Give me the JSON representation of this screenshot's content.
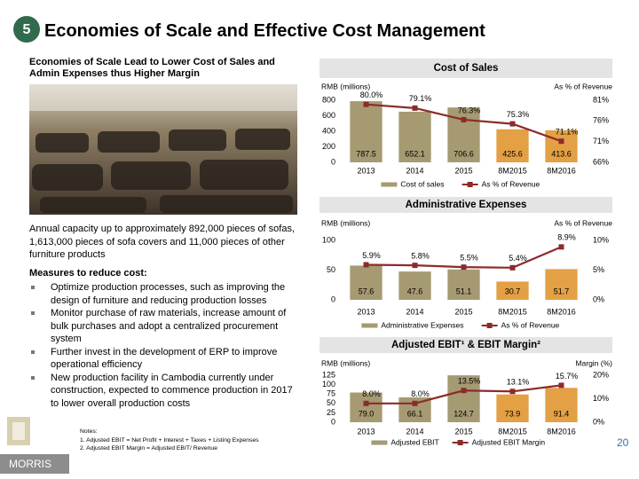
{
  "header": {
    "number": "5",
    "title": "Economies of Scale and Effective Cost Management",
    "subtitle": "Economies of Scale Lead to Lower Cost of Sales and Admin Expenses thus Higher Margin"
  },
  "left": {
    "capacity": "Annual capacity up to approximately 892,000 pieces of sofas, 1,613,000 pieces of sofa covers and 11,000 pieces of other furniture products",
    "measures_title": "Measures to reduce cost:",
    "measures": [
      "Optimize production processes, such as improving the design of furniture and reducing production losses",
      "Monitor purchase of raw materials, increase amount of bulk purchases and adopt a centralized procurement system",
      "Further invest in the development of ERP to improve operational efficiency",
      "New production facility in Cambodia currently under construction, expected to commence production in 2017 to lower overall production costs"
    ],
    "notes_title": "Notes:",
    "notes": [
      "1.   Adjusted EBIT = Net Profit + Interest + Taxes + Listing Expenses",
      "2.   Adjusted EBIT Margin = Adjusted EBIT/ Revenue"
    ]
  },
  "footer": {
    "logo": "MORRIS",
    "page": "20"
  },
  "chart_data": [
    {
      "type": "combo",
      "title": "Cost of Sales",
      "y_label": "RMB (millions)",
      "y2_label": "As % of Revenue",
      "categories": [
        "2013",
        "2014",
        "2015",
        "8M2015",
        "8M2016"
      ],
      "series": [
        {
          "name": "Cost of sales",
          "type": "bar",
          "color": "#a69a73",
          "colors": [
            "#a69a73",
            "#a69a73",
            "#a69a73",
            "#e3a044",
            "#e3a044"
          ],
          "values": [
            787.5,
            652.1,
            706.6,
            425.6,
            413.6
          ]
        },
        {
          "name": "As % of Revenue",
          "type": "line",
          "axis": "y2",
          "color": "#8c2b2b",
          "values": [
            80.0,
            79.1,
            76.3,
            75.3,
            71.1
          ],
          "value_labels": [
            "80.0%",
            "79.1%",
            "76.3%",
            "75.3%",
            "71.1%"
          ]
        }
      ],
      "ylim": [
        0,
        800
      ],
      "yticks": [
        0,
        200,
        400,
        600,
        800
      ],
      "y2lim": [
        66,
        81
      ],
      "y2ticks": [
        {
          "value": 66,
          "label": "66%"
        },
        {
          "value": 71,
          "label": "71%"
        },
        {
          "value": 76,
          "label": "76%"
        },
        {
          "value": 81,
          "label": "81%"
        }
      ],
      "legend": "bottom"
    },
    {
      "type": "combo",
      "title": "Administrative Expenses",
      "y_label": "RMB (millions)",
      "y2_label": "As % of Revenue",
      "categories": [
        "2013",
        "2014",
        "2015",
        "8M2015",
        "8M2016"
      ],
      "series": [
        {
          "name": "Administrative Expenses",
          "type": "bar",
          "color": "#a69a73",
          "colors": [
            "#a69a73",
            "#a69a73",
            "#a69a73",
            "#e3a044",
            "#e3a044"
          ],
          "values": [
            57.6,
            47.6,
            51.1,
            30.7,
            51.7
          ]
        },
        {
          "name": "As % of Revenue",
          "type": "line",
          "axis": "y2",
          "color": "#8c2b2b",
          "values": [
            5.9,
            5.8,
            5.5,
            5.4,
            8.9
          ],
          "value_labels": [
            "5.9%",
            "5.8%",
            "5.5%",
            "5.4%",
            "8.9%"
          ]
        }
      ],
      "ylim": [
        0,
        100
      ],
      "yticks": [
        0,
        50,
        100
      ],
      "y2lim": [
        0,
        10
      ],
      "y2ticks": [
        {
          "value": 0,
          "label": "0%"
        },
        {
          "value": 5,
          "label": "5%"
        },
        {
          "value": 10,
          "label": "10%"
        }
      ],
      "legend": "bottom"
    },
    {
      "type": "combo",
      "title": "Adjusted EBIT¹ & EBIT Margin²",
      "y_label": "RMB (millions)",
      "y2_label": "Margin (%)",
      "categories": [
        "2013",
        "2014",
        "2015",
        "8M2015",
        "8M2016"
      ],
      "series": [
        {
          "name": "Adjusted EBIT",
          "type": "bar",
          "color": "#a69a73",
          "colors": [
            "#a69a73",
            "#a69a73",
            "#a69a73",
            "#e3a044",
            "#e3a044"
          ],
          "values": [
            79.0,
            66.1,
            124.7,
            73.9,
            91.4
          ],
          "value_labels": [
            "79.0",
            "66.1",
            "124.7",
            "73.9",
            "91.4"
          ]
        },
        {
          "name": "Adjusted EBIT Margin",
          "type": "line",
          "axis": "y2",
          "color": "#8c2b2b",
          "values": [
            8.0,
            8.0,
            13.5,
            13.1,
            15.7
          ],
          "value_labels": [
            "8.0%",
            "8.0%",
            "13.5%",
            "13.1%",
            "15.7%"
          ]
        }
      ],
      "ylim": [
        0,
        125
      ],
      "yticks": [
        0,
        25,
        50,
        75,
        100,
        125
      ],
      "y2lim": [
        0,
        20
      ],
      "y2ticks": [
        {
          "value": 0,
          "label": "0%"
        },
        {
          "value": 10,
          "label": "10%"
        },
        {
          "value": 20,
          "label": "20%"
        }
      ],
      "legend": "bottom"
    }
  ]
}
